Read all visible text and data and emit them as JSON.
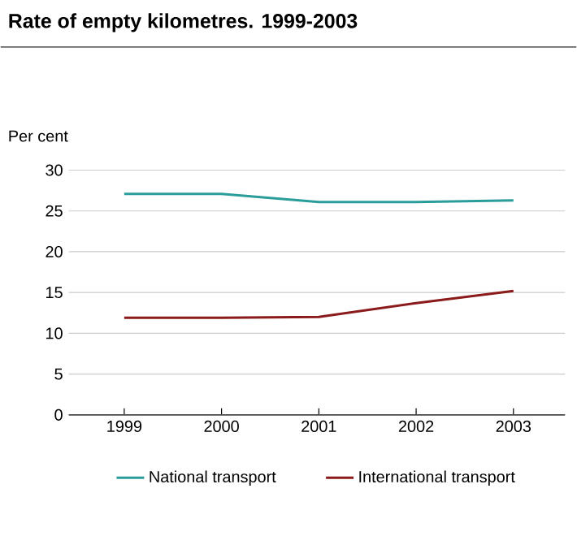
{
  "chart_data": {
    "type": "line",
    "title": "Rate of empty kilometres. 1999-2003",
    "ylabel": "Per cent",
    "categories": [
      "1999",
      "2000",
      "2001",
      "2002",
      "2003"
    ],
    "series": [
      {
        "name": "National transport",
        "color": "#2a9d9a",
        "values": [
          27.1,
          27.1,
          26.1,
          26.1,
          26.3
        ]
      },
      {
        "name": "International transport",
        "color": "#8b1a1a",
        "values": [
          11.9,
          11.9,
          12.0,
          13.7,
          15.2
        ]
      }
    ],
    "ylim": [
      0,
      30
    ],
    "yticks": [
      0,
      5,
      10,
      15,
      20,
      25,
      30
    ],
    "grid": "y",
    "legend": "bottom",
    "marker": "none",
    "line_style": "solid"
  }
}
